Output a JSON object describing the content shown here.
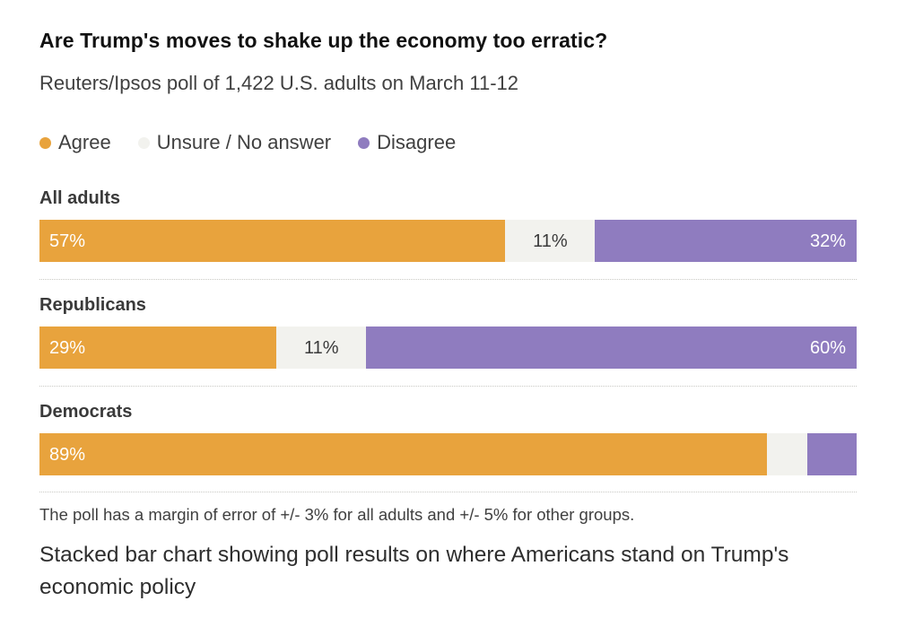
{
  "header": {
    "title": "Are Trump's moves to shake up the economy too erratic?",
    "subtitle": "Reuters/Ipsos poll of 1,422 U.S. adults on March 11-12"
  },
  "colors": {
    "agree": "#E8A33D",
    "unsure": "#F2F2EE",
    "disagree": "#8F7CBF",
    "text_dark": "#3a3a3a",
    "text_light": "#ffffff"
  },
  "chart_data": {
    "type": "bar",
    "variant": "stacked-horizontal",
    "title": "Are Trump's moves to shake up the economy too erratic?",
    "subtitle": "Reuters/Ipsos poll of 1,422 U.S. adults on March 11-12",
    "categories": [
      "All adults",
      "Republicans",
      "Democrats"
    ],
    "series": [
      {
        "name": "Agree",
        "color": "#E8A33D",
        "values": [
          57,
          29,
          89
        ],
        "labels": [
          "57%",
          "29%",
          "89%"
        ]
      },
      {
        "name": "Unsure / No answer",
        "color": "#F2F2EE",
        "values": [
          11,
          11,
          5
        ],
        "labels": [
          "11%",
          "11%",
          ""
        ]
      },
      {
        "name": "Disagree",
        "color": "#8F7CBF",
        "values": [
          32,
          60,
          6
        ],
        "labels": [
          "32%",
          "60%",
          ""
        ]
      }
    ],
    "xlim": [
      0,
      100
    ],
    "legend_position": "top",
    "grid": false
  },
  "footer": {
    "note": "The poll has a margin of error of +/- 3% for all adults and +/- 5% for other groups.",
    "caption": "Stacked bar chart showing poll results on where Americans stand on Trump's economic policy"
  }
}
